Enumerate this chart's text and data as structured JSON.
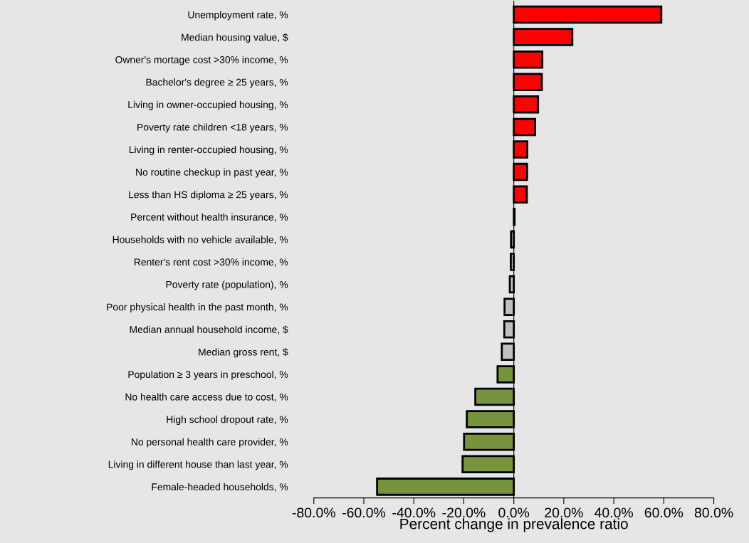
{
  "chart_data": {
    "type": "bar",
    "orientation": "horizontal",
    "xlabel": "Percent change in prevalence ratio",
    "categories": [
      "Unemployment rate, %",
      "Median housing value, $",
      "Owner's mortage cost >30% income, %",
      "Bachelor's degree ≥ 25 years, %",
      "Living in owner-occupied housing, %",
      "Poverty rate children <18 years, %",
      "Living in renter-occupied housing, %",
      "No routine checkup in past year, %",
      "Less than HS diploma ≥ 25 years, %",
      "Percent without health insurance, %",
      "Households with no vehicle available, %",
      "Renter's rent cost >30% income, %",
      "Poverty rate (population), %",
      "Poor physical health in the past month, %",
      "Median annual household income, $",
      "Median gross rent, $",
      "Population ≥ 3 years in preschool, %",
      "No health care access due to cost, %",
      "High school dropout rate, %",
      "No personal health care provider, %",
      "Living in different house than last year, %",
      "Female-headed households, %"
    ],
    "values": [
      59.0,
      23.4,
      11.4,
      11.2,
      9.7,
      8.5,
      5.4,
      5.3,
      5.2,
      0.3,
      -1.1,
      -1.2,
      -1.6,
      -3.7,
      -3.8,
      -4.8,
      -6.5,
      -15.4,
      -18.8,
      -19.9,
      -20.5,
      -54.7
    ],
    "colors": [
      "#ff0000",
      "#ff0000",
      "#ff0000",
      "#ff0000",
      "#ff0000",
      "#ff0000",
      "#ff0000",
      "#ff0000",
      "#ff0000",
      "#c0c0c0",
      "#c0c0c0",
      "#c0c0c0",
      "#c0c0c0",
      "#c0c0c0",
      "#c0c0c0",
      "#c0c0c0",
      "#77933c",
      "#77933c",
      "#77933c",
      "#77933c",
      "#77933c",
      "#77933c"
    ],
    "xlim": [
      -80,
      80
    ],
    "xticks": [
      {
        "value": -80,
        "label": "-80.0%"
      },
      {
        "value": -60,
        "label": "-60.0%"
      },
      {
        "value": -40,
        "label": "-40.0%"
      },
      {
        "value": -20,
        "label": "-20.0%"
      },
      {
        "value": 0,
        "label": "0.0%"
      },
      {
        "value": 20,
        "label": "20.0%"
      },
      {
        "value": 40,
        "label": "40.0%"
      },
      {
        "value": 60,
        "label": "60.0%"
      },
      {
        "value": 80,
        "label": "80.0%"
      }
    ],
    "legend": false
  }
}
